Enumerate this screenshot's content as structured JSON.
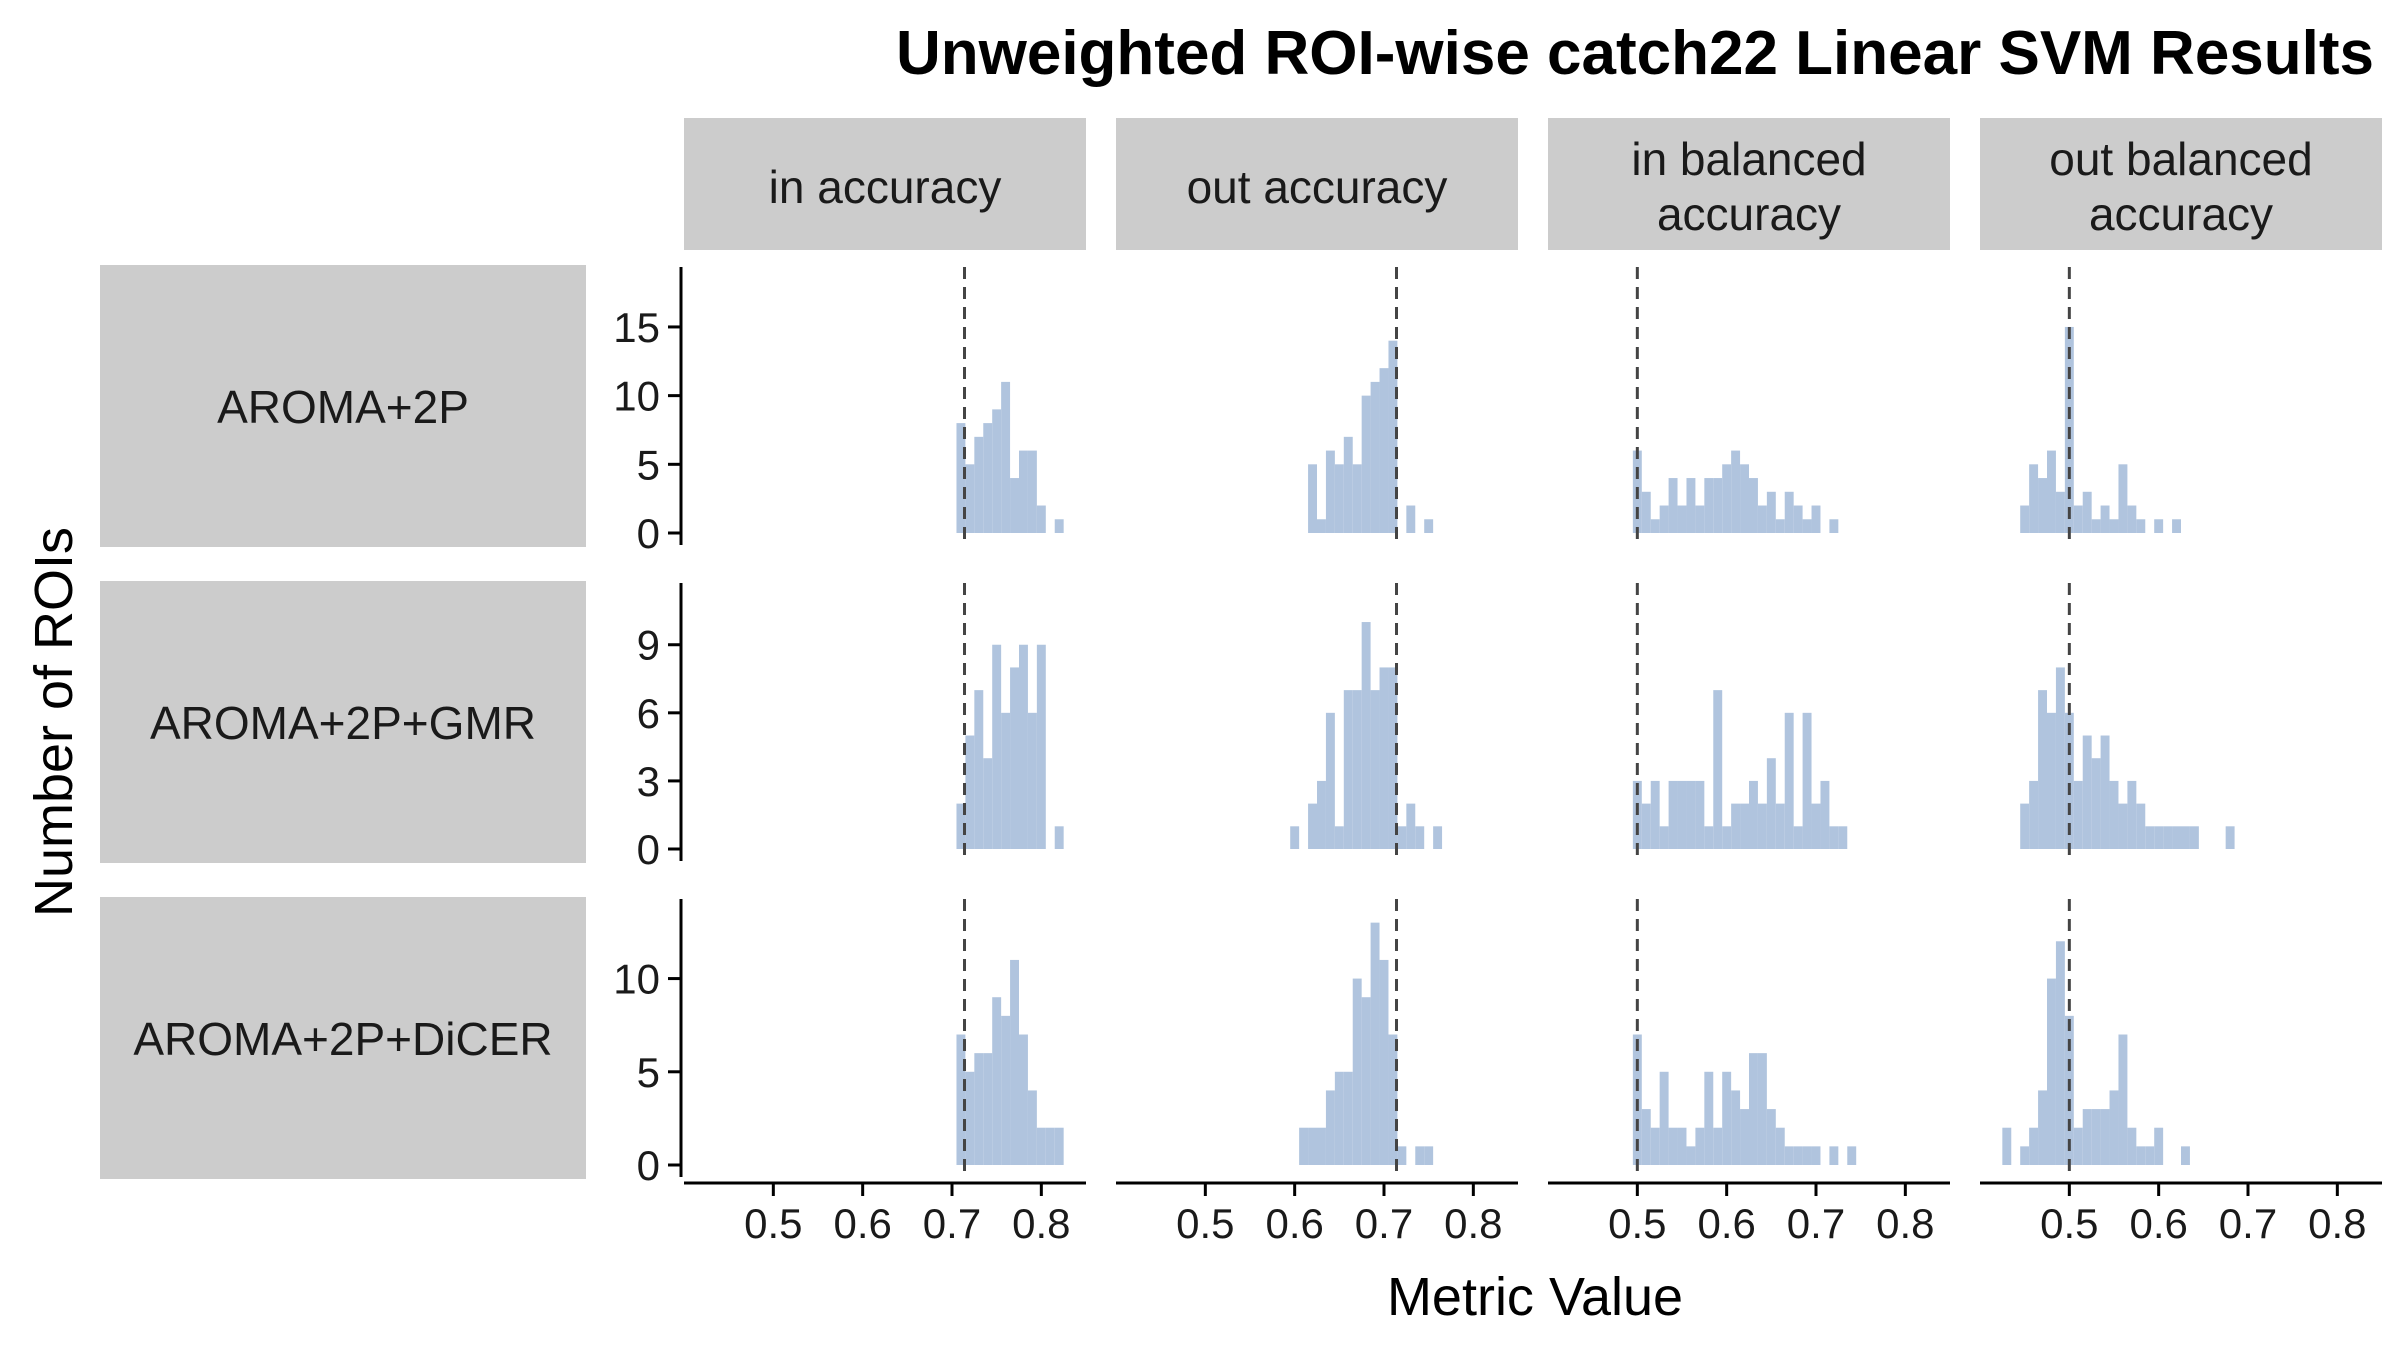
{
  "chart_data": {
    "type": "histogram-facet-grid",
    "title": "Unweighted ROI-wise catch22 Linear SVM Results",
    "xlabel": "Metric Value",
    "ylabel": "Number of ROIs",
    "xlim": [
      0.4,
      0.85
    ],
    "x_ticks": [
      0.5,
      0.6,
      0.7,
      0.8
    ],
    "x_tick_labels": [
      "0.5",
      "0.6",
      "0.7",
      "0.8"
    ],
    "bin_width": 0.01,
    "grid": false,
    "colors": {
      "bars": "#b0c4de",
      "strip": "#cccccc",
      "ref_line": "#444444"
    },
    "columns": [
      "in accuracy",
      "out accuracy",
      "in balanced accuracy",
      "out balanced accuracy"
    ],
    "column_labels": [
      [
        "in accuracy"
      ],
      [
        "out accuracy"
      ],
      [
        "in balanced",
        "accuracy"
      ],
      [
        "out balanced",
        "accuracy"
      ]
    ],
    "ref_lines": [
      0.714,
      0.714,
      0.5,
      0.5
    ],
    "rows": [
      {
        "label": "AROMA+2P",
        "ylim": [
          0,
          19
        ],
        "y_ticks": [
          0,
          5,
          10,
          15
        ],
        "y_tick_labels": [
          "0",
          "5",
          "10",
          "15"
        ],
        "panels": [
          {
            "bins": [
              [
                0.71,
                8
              ],
              [
                0.72,
                5
              ],
              [
                0.73,
                7
              ],
              [
                0.74,
                8
              ],
              [
                0.75,
                9
              ],
              [
                0.76,
                11
              ],
              [
                0.77,
                4
              ],
              [
                0.78,
                6
              ],
              [
                0.79,
                6
              ],
              [
                0.8,
                2
              ],
              [
                0.82,
                1
              ]
            ]
          },
          {
            "bins": [
              [
                0.62,
                5
              ],
              [
                0.63,
                1
              ],
              [
                0.64,
                6
              ],
              [
                0.65,
                5
              ],
              [
                0.66,
                7
              ],
              [
                0.67,
                5
              ],
              [
                0.68,
                10
              ],
              [
                0.69,
                11
              ],
              [
                0.7,
                12
              ],
              [
                0.71,
                14
              ],
              [
                0.73,
                2
              ],
              [
                0.75,
                1
              ]
            ]
          },
          {
            "bins": [
              [
                0.5,
                6
              ],
              [
                0.51,
                3
              ],
              [
                0.52,
                1
              ],
              [
                0.53,
                2
              ],
              [
                0.54,
                4
              ],
              [
                0.55,
                2
              ],
              [
                0.56,
                4
              ],
              [
                0.57,
                2
              ],
              [
                0.58,
                4
              ],
              [
                0.59,
                4
              ],
              [
                0.6,
                5
              ],
              [
                0.61,
                6
              ],
              [
                0.62,
                5
              ],
              [
                0.63,
                4
              ],
              [
                0.64,
                2
              ],
              [
                0.65,
                3
              ],
              [
                0.66,
                1
              ],
              [
                0.67,
                3
              ],
              [
                0.68,
                2
              ],
              [
                0.69,
                1
              ],
              [
                0.7,
                2
              ],
              [
                0.72,
                1
              ]
            ]
          },
          {
            "bins": [
              [
                0.45,
                2
              ],
              [
                0.46,
                5
              ],
              [
                0.47,
                4
              ],
              [
                0.48,
                6
              ],
              [
                0.49,
                3
              ],
              [
                0.5,
                15
              ],
              [
                0.51,
                2
              ],
              [
                0.52,
                3
              ],
              [
                0.53,
                1
              ],
              [
                0.54,
                2
              ],
              [
                0.55,
                1
              ],
              [
                0.56,
                5
              ],
              [
                0.57,
                2
              ],
              [
                0.58,
                1
              ],
              [
                0.6,
                1
              ],
              [
                0.62,
                1
              ]
            ]
          }
        ]
      },
      {
        "label": "AROMA+2P+GMR",
        "ylim": [
          0,
          11.5
        ],
        "y_ticks": [
          0,
          3,
          6,
          9
        ],
        "y_tick_labels": [
          "0",
          "3",
          "6",
          "9"
        ],
        "panels": [
          {
            "bins": [
              [
                0.71,
                2
              ],
              [
                0.72,
                5
              ],
              [
                0.73,
                7
              ],
              [
                0.74,
                4
              ],
              [
                0.75,
                9
              ],
              [
                0.76,
                6
              ],
              [
                0.77,
                8
              ],
              [
                0.78,
                9
              ],
              [
                0.79,
                6
              ],
              [
                0.8,
                9
              ],
              [
                0.82,
                1
              ]
            ]
          },
          {
            "bins": [
              [
                0.6,
                1
              ],
              [
                0.62,
                2
              ],
              [
                0.63,
                3
              ],
              [
                0.64,
                6
              ],
              [
                0.65,
                1
              ],
              [
                0.66,
                7
              ],
              [
                0.67,
                7
              ],
              [
                0.68,
                10
              ],
              [
                0.69,
                7
              ],
              [
                0.7,
                8
              ],
              [
                0.71,
                8
              ],
              [
                0.72,
                1
              ],
              [
                0.73,
                2
              ],
              [
                0.74,
                1
              ],
              [
                0.76,
                1
              ]
            ]
          },
          {
            "bins": [
              [
                0.5,
                3
              ],
              [
                0.51,
                2
              ],
              [
                0.52,
                3
              ],
              [
                0.53,
                1
              ],
              [
                0.54,
                3
              ],
              [
                0.55,
                3
              ],
              [
                0.56,
                3
              ],
              [
                0.57,
                3
              ],
              [
                0.58,
                1
              ],
              [
                0.59,
                7
              ],
              [
                0.6,
                1
              ],
              [
                0.61,
                2
              ],
              [
                0.62,
                2
              ],
              [
                0.63,
                3
              ],
              [
                0.64,
                2
              ],
              [
                0.65,
                4
              ],
              [
                0.66,
                2
              ],
              [
                0.67,
                6
              ],
              [
                0.68,
                1
              ],
              [
                0.69,
                6
              ],
              [
                0.7,
                2
              ],
              [
                0.71,
                3
              ],
              [
                0.72,
                1
              ],
              [
                0.73,
                1
              ]
            ]
          },
          {
            "bins": [
              [
                0.45,
                2
              ],
              [
                0.46,
                3
              ],
              [
                0.47,
                7
              ],
              [
                0.48,
                6
              ],
              [
                0.49,
                8
              ],
              [
                0.5,
                6
              ],
              [
                0.51,
                3
              ],
              [
                0.52,
                5
              ],
              [
                0.53,
                4
              ],
              [
                0.54,
                5
              ],
              [
                0.55,
                3
              ],
              [
                0.56,
                2
              ],
              [
                0.57,
                3
              ],
              [
                0.58,
                2
              ],
              [
                0.59,
                1
              ],
              [
                0.6,
                1
              ],
              [
                0.61,
                1
              ],
              [
                0.62,
                1
              ],
              [
                0.63,
                1
              ],
              [
                0.64,
                1
              ],
              [
                0.68,
                1
              ]
            ]
          }
        ]
      },
      {
        "label": "AROMA+2P+DiCER",
        "ylim": [
          0,
          14
        ],
        "y_ticks": [
          0,
          5,
          10
        ],
        "y_tick_labels": [
          "0",
          "5",
          "10"
        ],
        "panels": [
          {
            "bins": [
              [
                0.71,
                7
              ],
              [
                0.72,
                5
              ],
              [
                0.73,
                6
              ],
              [
                0.74,
                6
              ],
              [
                0.75,
                9
              ],
              [
                0.76,
                8
              ],
              [
                0.77,
                11
              ],
              [
                0.78,
                7
              ],
              [
                0.79,
                4
              ],
              [
                0.8,
                2
              ],
              [
                0.81,
                2
              ],
              [
                0.82,
                2
              ]
            ]
          },
          {
            "bins": [
              [
                0.61,
                2
              ],
              [
                0.62,
                2
              ],
              [
                0.63,
                2
              ],
              [
                0.64,
                4
              ],
              [
                0.65,
                5
              ],
              [
                0.66,
                5
              ],
              [
                0.67,
                10
              ],
              [
                0.68,
                9
              ],
              [
                0.69,
                13
              ],
              [
                0.7,
                11
              ],
              [
                0.71,
                7
              ],
              [
                0.72,
                1
              ],
              [
                0.74,
                1
              ],
              [
                0.75,
                1
              ]
            ]
          },
          {
            "bins": [
              [
                0.5,
                7
              ],
              [
                0.51,
                3
              ],
              [
                0.52,
                2
              ],
              [
                0.53,
                5
              ],
              [
                0.54,
                2
              ],
              [
                0.55,
                2
              ],
              [
                0.56,
                1
              ],
              [
                0.57,
                2
              ],
              [
                0.58,
                5
              ],
              [
                0.59,
                2
              ],
              [
                0.6,
                5
              ],
              [
                0.61,
                4
              ],
              [
                0.62,
                3
              ],
              [
                0.63,
                6
              ],
              [
                0.64,
                6
              ],
              [
                0.65,
                3
              ],
              [
                0.66,
                2
              ],
              [
                0.67,
                1
              ],
              [
                0.68,
                1
              ],
              [
                0.69,
                1
              ],
              [
                0.7,
                1
              ],
              [
                0.72,
                1
              ],
              [
                0.74,
                1
              ]
            ]
          },
          {
            "bins": [
              [
                0.43,
                2
              ],
              [
                0.45,
                1
              ],
              [
                0.46,
                2
              ],
              [
                0.47,
                4
              ],
              [
                0.48,
                10
              ],
              [
                0.49,
                12
              ],
              [
                0.5,
                8
              ],
              [
                0.51,
                2
              ],
              [
                0.52,
                3
              ],
              [
                0.53,
                3
              ],
              [
                0.54,
                3
              ],
              [
                0.55,
                4
              ],
              [
                0.56,
                7
              ],
              [
                0.57,
                2
              ],
              [
                0.58,
                1
              ],
              [
                0.59,
                1
              ],
              [
                0.6,
                2
              ],
              [
                0.63,
                1
              ]
            ]
          }
        ]
      }
    ]
  }
}
